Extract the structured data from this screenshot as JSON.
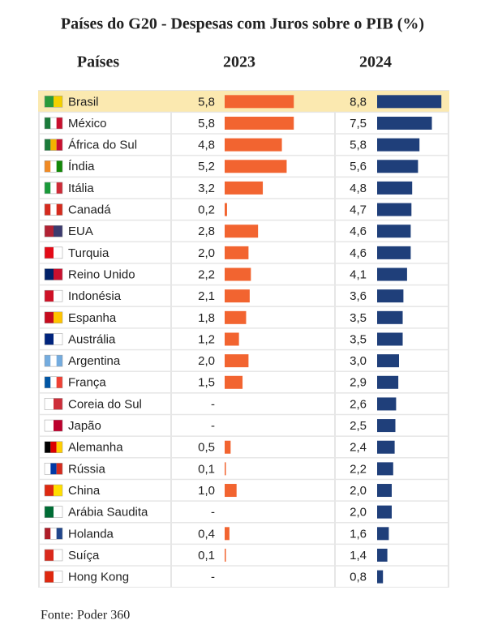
{
  "chart_data": {
    "type": "bar",
    "title": "Países do G20 - Despesas com Juros sobre o PIB (%)",
    "category_label": "Países",
    "categories": [
      "Brasil",
      "México",
      "África do Sul",
      "Índia",
      "Itália",
      "Canadá",
      "EUA",
      "Turquia",
      "Reino Unido",
      "Indonésia",
      "Espanha",
      "Austrália",
      "Argentina",
      "França",
      "Coreia do Sul",
      "Japão",
      "Alemanha",
      "Rússia",
      "China",
      "Arábia Saudita",
      "Holanda",
      "Suíça",
      "Hong Kong"
    ],
    "series": [
      {
        "name": "2023",
        "color": "#f26430",
        "values": [
          5.8,
          5.8,
          4.8,
          5.2,
          3.2,
          0.2,
          2.8,
          2.0,
          2.2,
          2.1,
          1.8,
          1.2,
          2.0,
          1.5,
          null,
          null,
          0.5,
          0.1,
          1.0,
          null,
          0.4,
          0.1,
          null
        ],
        "value_labels": [
          "5,8",
          "5,8",
          "4,8",
          "5,2",
          "3,2",
          "0,2",
          "2,8",
          "2,0",
          "2,2",
          "2,1",
          "1,8",
          "1,2",
          "2,0",
          "1,5",
          "-",
          "-",
          "0,5",
          "0,1",
          "1,0",
          "-",
          "0,4",
          "0,1",
          "-"
        ]
      },
      {
        "name": "2024",
        "color": "#1f3f7a",
        "values": [
          8.8,
          7.5,
          5.8,
          5.6,
          4.8,
          4.7,
          4.6,
          4.6,
          4.1,
          3.6,
          3.5,
          3.5,
          3.0,
          2.9,
          2.6,
          2.5,
          2.4,
          2.2,
          2.0,
          2.0,
          1.6,
          1.4,
          0.8
        ],
        "value_labels": [
          "8,8",
          "7,5",
          "5,8",
          "5,6",
          "4,8",
          "4,7",
          "4,6",
          "4,6",
          "4,1",
          "3,6",
          "3,5",
          "3,5",
          "3,0",
          "2,9",
          "2,6",
          "2,5",
          "2,4",
          "2,2",
          "2,0",
          "2,0",
          "1,6",
          "1,4",
          "0,8"
        ]
      }
    ],
    "source": "Fonte: Poder 360"
  }
}
